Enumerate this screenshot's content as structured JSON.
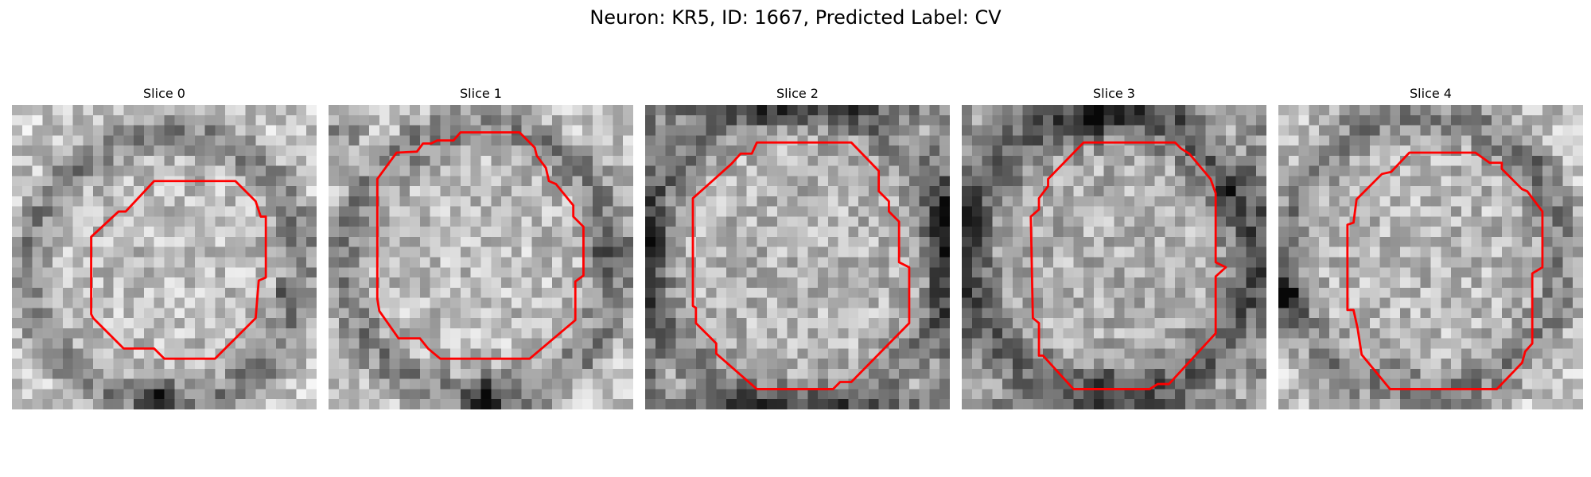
{
  "figure": {
    "title": "Neuron: KR5, ID: 1667, Predicted Label: CV"
  },
  "contour_color": "#ff0000",
  "grid_size": 30,
  "slices": [
    {
      "title": "Slice 0",
      "seed": 11,
      "ring": {
        "cx": 15.2,
        "cy": 16.2,
        "r": 13.4,
        "w": 2.0,
        "strength": 60
      },
      "center": 190,
      "edge_boost": 0,
      "darkspots": [
        [
          14.5,
          28.5,
          1.6,
          130
        ],
        [
          26.5,
          18.5,
          1.0,
          60
        ]
      ],
      "contour": [
        [
          14,
          7.5
        ],
        [
          22,
          7.5
        ],
        [
          24,
          9.5
        ],
        [
          24.5,
          11
        ],
        [
          25,
          11
        ],
        [
          25,
          17
        ],
        [
          24.3,
          17.3
        ],
        [
          24,
          21
        ],
        [
          20,
          25
        ],
        [
          15,
          25
        ],
        [
          14,
          24
        ],
        [
          11,
          24
        ],
        [
          8,
          21
        ],
        [
          7.8,
          20.6
        ],
        [
          7.8,
          13
        ],
        [
          10.5,
          10.5
        ],
        [
          11.2,
          10.5
        ]
      ]
    },
    {
      "title": "Slice 1",
      "seed": 23,
      "ring": {
        "cx": 15.0,
        "cy": 15.7,
        "r": 13.4,
        "w": 2.2,
        "strength": 60
      },
      "center": 190,
      "edge_boost": 0,
      "darkspots": [
        [
          15.5,
          28.8,
          2.0,
          110
        ],
        [
          1.5,
          2.5,
          1.8,
          70
        ],
        [
          27.5,
          14.5,
          2.0,
          70
        ]
      ],
      "contour": [
        [
          13,
          2.7
        ],
        [
          18.8,
          2.7
        ],
        [
          20.3,
          4.2
        ],
        [
          20.5,
          5
        ],
        [
          21.4,
          6.2
        ],
        [
          21.7,
          7.5
        ],
        [
          22.4,
          7.8
        ],
        [
          24.1,
          9.9
        ],
        [
          24.1,
          11
        ],
        [
          25.1,
          12
        ],
        [
          25.1,
          16.8
        ],
        [
          24.3,
          17.4
        ],
        [
          24.3,
          21.2
        ],
        [
          19.8,
          25
        ],
        [
          11,
          25
        ],
        [
          9.8,
          24
        ],
        [
          9,
          23
        ],
        [
          6.9,
          23
        ],
        [
          5,
          20.3
        ],
        [
          4.8,
          19.1
        ],
        [
          4.8,
          7.3
        ],
        [
          6.7,
          4.7
        ],
        [
          8.7,
          4.6
        ],
        [
          9.3,
          3.8
        ],
        [
          10.1,
          3.8
        ],
        [
          10.7,
          3.5
        ],
        [
          12.3,
          3.5
        ]
      ]
    },
    {
      "title": "Slice 2",
      "seed": 37,
      "ring": {
        "cx": 15.0,
        "cy": 14.8,
        "r": 14.6,
        "w": 2.0,
        "strength": 55
      },
      "center": 180,
      "edge_boost": 70,
      "darkspots": [
        [
          1.0,
          14.0,
          1.6,
          80
        ],
        [
          29.0,
          11.5,
          1.8,
          90
        ],
        [
          11.7,
          4.0,
          0.8,
          80
        ]
      ],
      "contour": [
        [
          11,
          3.7
        ],
        [
          20.3,
          3.7
        ],
        [
          23,
          6.5
        ],
        [
          23,
          8.5
        ],
        [
          24,
          9.5
        ],
        [
          24,
          10.5
        ],
        [
          25,
          11.5
        ],
        [
          25,
          15.5
        ],
        [
          26,
          16
        ],
        [
          26,
          21.5
        ],
        [
          20.3,
          27.3
        ],
        [
          19.2,
          27.3
        ],
        [
          18.5,
          28
        ],
        [
          11,
          28
        ],
        [
          7,
          24.5
        ],
        [
          7,
          23.5
        ],
        [
          5,
          21.5
        ],
        [
          5,
          20
        ],
        [
          4.7,
          19.8
        ],
        [
          4.7,
          9.2
        ],
        [
          8.5,
          5.8
        ],
        [
          9.4,
          4.8
        ],
        [
          10.5,
          4.8
        ]
      ]
    },
    {
      "title": "Slice 3",
      "seed": 51,
      "ring": {
        "cx": 14.5,
        "cy": 14.8,
        "r": 13.8,
        "w": 2.5,
        "strength": 75
      },
      "center": 175,
      "edge_boost": 45,
      "darkspots": [
        [
          13.5,
          1.5,
          1.6,
          80
        ],
        [
          26.0,
          9.0,
          1.2,
          70
        ],
        [
          14.0,
          27.6,
          1.4,
          60
        ]
      ],
      "contour": [
        [
          12,
          3.7
        ],
        [
          21,
          3.7
        ],
        [
          21.6,
          4.3
        ],
        [
          22.4,
          4.8
        ],
        [
          24.5,
          7.3
        ],
        [
          25,
          8.7
        ],
        [
          25,
          15.5
        ],
        [
          26,
          16
        ],
        [
          25,
          16.9
        ],
        [
          25,
          22.5
        ],
        [
          20.4,
          27.5
        ],
        [
          19.3,
          27.5
        ],
        [
          18.5,
          28
        ],
        [
          11,
          28
        ],
        [
          8,
          24.7
        ],
        [
          7.6,
          24.7
        ],
        [
          7.6,
          21.5
        ],
        [
          7,
          21
        ],
        [
          6.8,
          11
        ],
        [
          7.6,
          10.3
        ],
        [
          7.6,
          9.2
        ],
        [
          8.5,
          8
        ],
        [
          8.5,
          7.3
        ],
        [
          12,
          3.7
        ]
      ]
    },
    {
      "title": "Slice 4",
      "seed": 67,
      "ring": {
        "cx": 14.3,
        "cy": 14.8,
        "r": 13.6,
        "w": 2.2,
        "strength": 55
      },
      "center": 185,
      "edge_boost": 0,
      "darkspots": [
        [
          0.8,
          19.0,
          1.8,
          140
        ],
        [
          25.5,
          6.0,
          1.2,
          60
        ],
        [
          11.5,
          24.5,
          2.5,
          30
        ]
      ],
      "contour": [
        [
          14.7,
          4.7
        ],
        [
          19.4,
          4.7
        ],
        [
          20.8,
          5.7
        ],
        [
          22,
          5.7
        ],
        [
          22,
          6.3
        ],
        [
          24,
          8.3
        ],
        [
          24.5,
          8.5
        ],
        [
          26,
          10.5
        ],
        [
          26,
          16
        ],
        [
          25,
          16.6
        ],
        [
          25,
          23.5
        ],
        [
          24.3,
          24.3
        ],
        [
          24,
          25.4
        ],
        [
          21.5,
          28
        ],
        [
          11,
          28
        ],
        [
          8.2,
          24.6
        ],
        [
          7.8,
          22
        ],
        [
          7.4,
          20.2
        ],
        [
          6.8,
          20.2
        ],
        [
          6.8,
          11.8
        ],
        [
          7.4,
          11.6
        ],
        [
          7.7,
          9.3
        ],
        [
          10.2,
          6.8
        ],
        [
          11.1,
          6.6
        ],
        [
          12.9,
          4.7
        ],
        [
          14.7,
          4.7
        ]
      ]
    }
  ]
}
